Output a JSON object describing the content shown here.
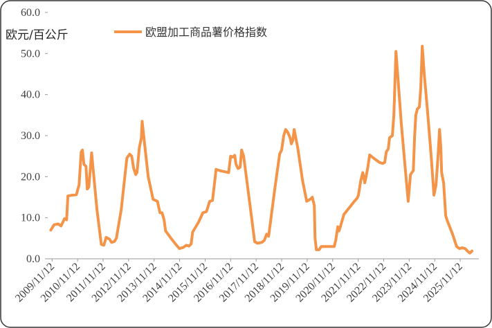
{
  "chart_data": {
    "type": "line",
    "y_label": "欧元/百公斤",
    "series": [
      {
        "name": "欧盟加工商品薯价格指数",
        "color": "#f39449",
        "x": [
          2009.82,
          2009.95,
          2010.11,
          2010.22,
          2010.36,
          2010.44,
          2010.49,
          2010.66,
          2010.82,
          2010.93,
          2011.01,
          2011.06,
          2011.12,
          2011.2,
          2011.25,
          2011.31,
          2011.42,
          2011.63,
          2011.8,
          2011.9,
          2011.99,
          2012.12,
          2012.2,
          2012.31,
          2012.39,
          2012.58,
          2012.8,
          2012.91,
          2012.99,
          2013.07,
          2013.15,
          2013.2,
          2013.29,
          2013.37,
          2013.4,
          2013.48,
          2013.64,
          2013.83,
          2014.0,
          2014.1,
          2014.18,
          2014.26,
          2014.32,
          2014.53,
          2014.72,
          2014.86,
          2015.02,
          2015.13,
          2015.24,
          2015.32,
          2015.38,
          2015.62,
          2015.78,
          2015.92,
          2016.05,
          2016.16,
          2016.3,
          2016.43,
          2016.79,
          2016.87,
          2016.95,
          2017.03,
          2017.08,
          2017.16,
          2017.24,
          2017.3,
          2017.38,
          2017.65,
          2017.81,
          2017.92,
          2018.09,
          2018.19,
          2018.28,
          2018.36,
          2018.6,
          2018.79,
          2018.87,
          2018.95,
          2019.03,
          2019.11,
          2019.2,
          2019.25,
          2019.31,
          2019.36,
          2019.5,
          2019.69,
          2019.85,
          2019.99,
          2020.07,
          2020.15,
          2020.18,
          2020.23,
          2020.34,
          2020.42,
          2020.72,
          2020.93,
          2020.99,
          2021.07,
          2021.12,
          2021.18,
          2021.31,
          2021.53,
          2021.72,
          2021.83,
          2021.88,
          2021.97,
          2022.05,
          2022.13,
          2022.24,
          2022.32,
          2022.48,
          2022.7,
          2022.83,
          2022.91,
          2022.97,
          2023.05,
          2023.1,
          2023.21,
          2023.27,
          2023.35,
          2023.43,
          2023.56,
          2023.7,
          2023.83,
          2023.92,
          2024.03,
          2024.08,
          2024.13,
          2024.19,
          2024.27,
          2024.32,
          2024.38,
          2024.46,
          2024.6,
          2024.73,
          2024.84,
          2024.92,
          2025.0,
          2025.06,
          2025.11,
          2025.14,
          2025.22,
          2025.3,
          2025.35,
          2025.57,
          2025.73,
          2025.84,
          2025.95,
          2026.06,
          2026.17,
          2026.25,
          2026.33
        ],
        "values": [
          7.0,
          8.3,
          8.5,
          8.0,
          9.8,
          9.5,
          15.3,
          15.5,
          15.6,
          18,
          26,
          26.5,
          23,
          22.5,
          17,
          17.5,
          25.8,
          12,
          3.5,
          3.3,
          5.2,
          4.8,
          4,
          4.2,
          5,
          12,
          24.5,
          25.5,
          25,
          22,
          20.5,
          21,
          27,
          29.5,
          33.5,
          29,
          20,
          14.5,
          14,
          11.2,
          11.2,
          9.5,
          6.8,
          5,
          3.5,
          2.5,
          2.8,
          3.3,
          3.1,
          3.6,
          6.5,
          9,
          11.2,
          11.5,
          14,
          14.2,
          21.8,
          21.5,
          21,
          25,
          24.8,
          25.2,
          23,
          22,
          22.3,
          26.5,
          25,
          12,
          4.2,
          3.8,
          4,
          4.5,
          6,
          5.5,
          17,
          25.5,
          26.5,
          30,
          31.5,
          30.8,
          29.5,
          28,
          29,
          31.5,
          27,
          19,
          14,
          14.5,
          15,
          13,
          5,
          2.2,
          2.2,
          3,
          3,
          3,
          4.5,
          7.8,
          6.8,
          8,
          10.8,
          12.5,
          14,
          14.8,
          15.5,
          19,
          21,
          18.5,
          22,
          25.3,
          24.5,
          23.5,
          23.2,
          23.5,
          26,
          26.8,
          29.5,
          30,
          35,
          50.5,
          44,
          33,
          23,
          14,
          20.5,
          21.5,
          29.5,
          35,
          36.5,
          37,
          41.5,
          51.8,
          45,
          35,
          25,
          15.5,
          18,
          25,
          31.5,
          27,
          21,
          18.5,
          10.5,
          9.5,
          6,
          3,
          2.5,
          2.7,
          2.5,
          1.8,
          1.4,
          1.9
        ]
      }
    ],
    "xlim": [
      2009.7,
      2026.6
    ],
    "xticks": [
      {
        "value": 2009.87,
        "label": "2009/11/12"
      },
      {
        "value": 2010.87,
        "label": "2010/11/12"
      },
      {
        "value": 2011.87,
        "label": "2011/11/12"
      },
      {
        "value": 2012.87,
        "label": "2012/11/12"
      },
      {
        "value": 2013.87,
        "label": "2013/11/12"
      },
      {
        "value": 2014.87,
        "label": "2014/11/12"
      },
      {
        "value": 2015.87,
        "label": "2015/11/12"
      },
      {
        "value": 2016.87,
        "label": "2016/11/12"
      },
      {
        "value": 2017.87,
        "label": "2017/11/12"
      },
      {
        "value": 2018.87,
        "label": "2018/11/12"
      },
      {
        "value": 2019.87,
        "label": "2019/11/12"
      },
      {
        "value": 2020.87,
        "label": "2020/11/12"
      },
      {
        "value": 2021.87,
        "label": "2021/11/12"
      },
      {
        "value": 2022.87,
        "label": "2022/11/12"
      },
      {
        "value": 2023.87,
        "label": "2023/11/12"
      },
      {
        "value": 2024.87,
        "label": "2024/11/12"
      },
      {
        "value": 2025.87,
        "label": "2025/11/12"
      }
    ],
    "ylim": [
      0,
      60
    ],
    "yticks": [
      {
        "value": 0,
        "label": "0.0"
      },
      {
        "value": 10,
        "label": "10.0"
      },
      {
        "value": 20,
        "label": "20.0"
      },
      {
        "value": 30,
        "label": "30.0"
      },
      {
        "value": 40,
        "label": "40.0"
      },
      {
        "value": 50,
        "label": "50.0"
      },
      {
        "value": 60,
        "label": "60.0"
      }
    ],
    "grid": false,
    "legend": "top"
  }
}
